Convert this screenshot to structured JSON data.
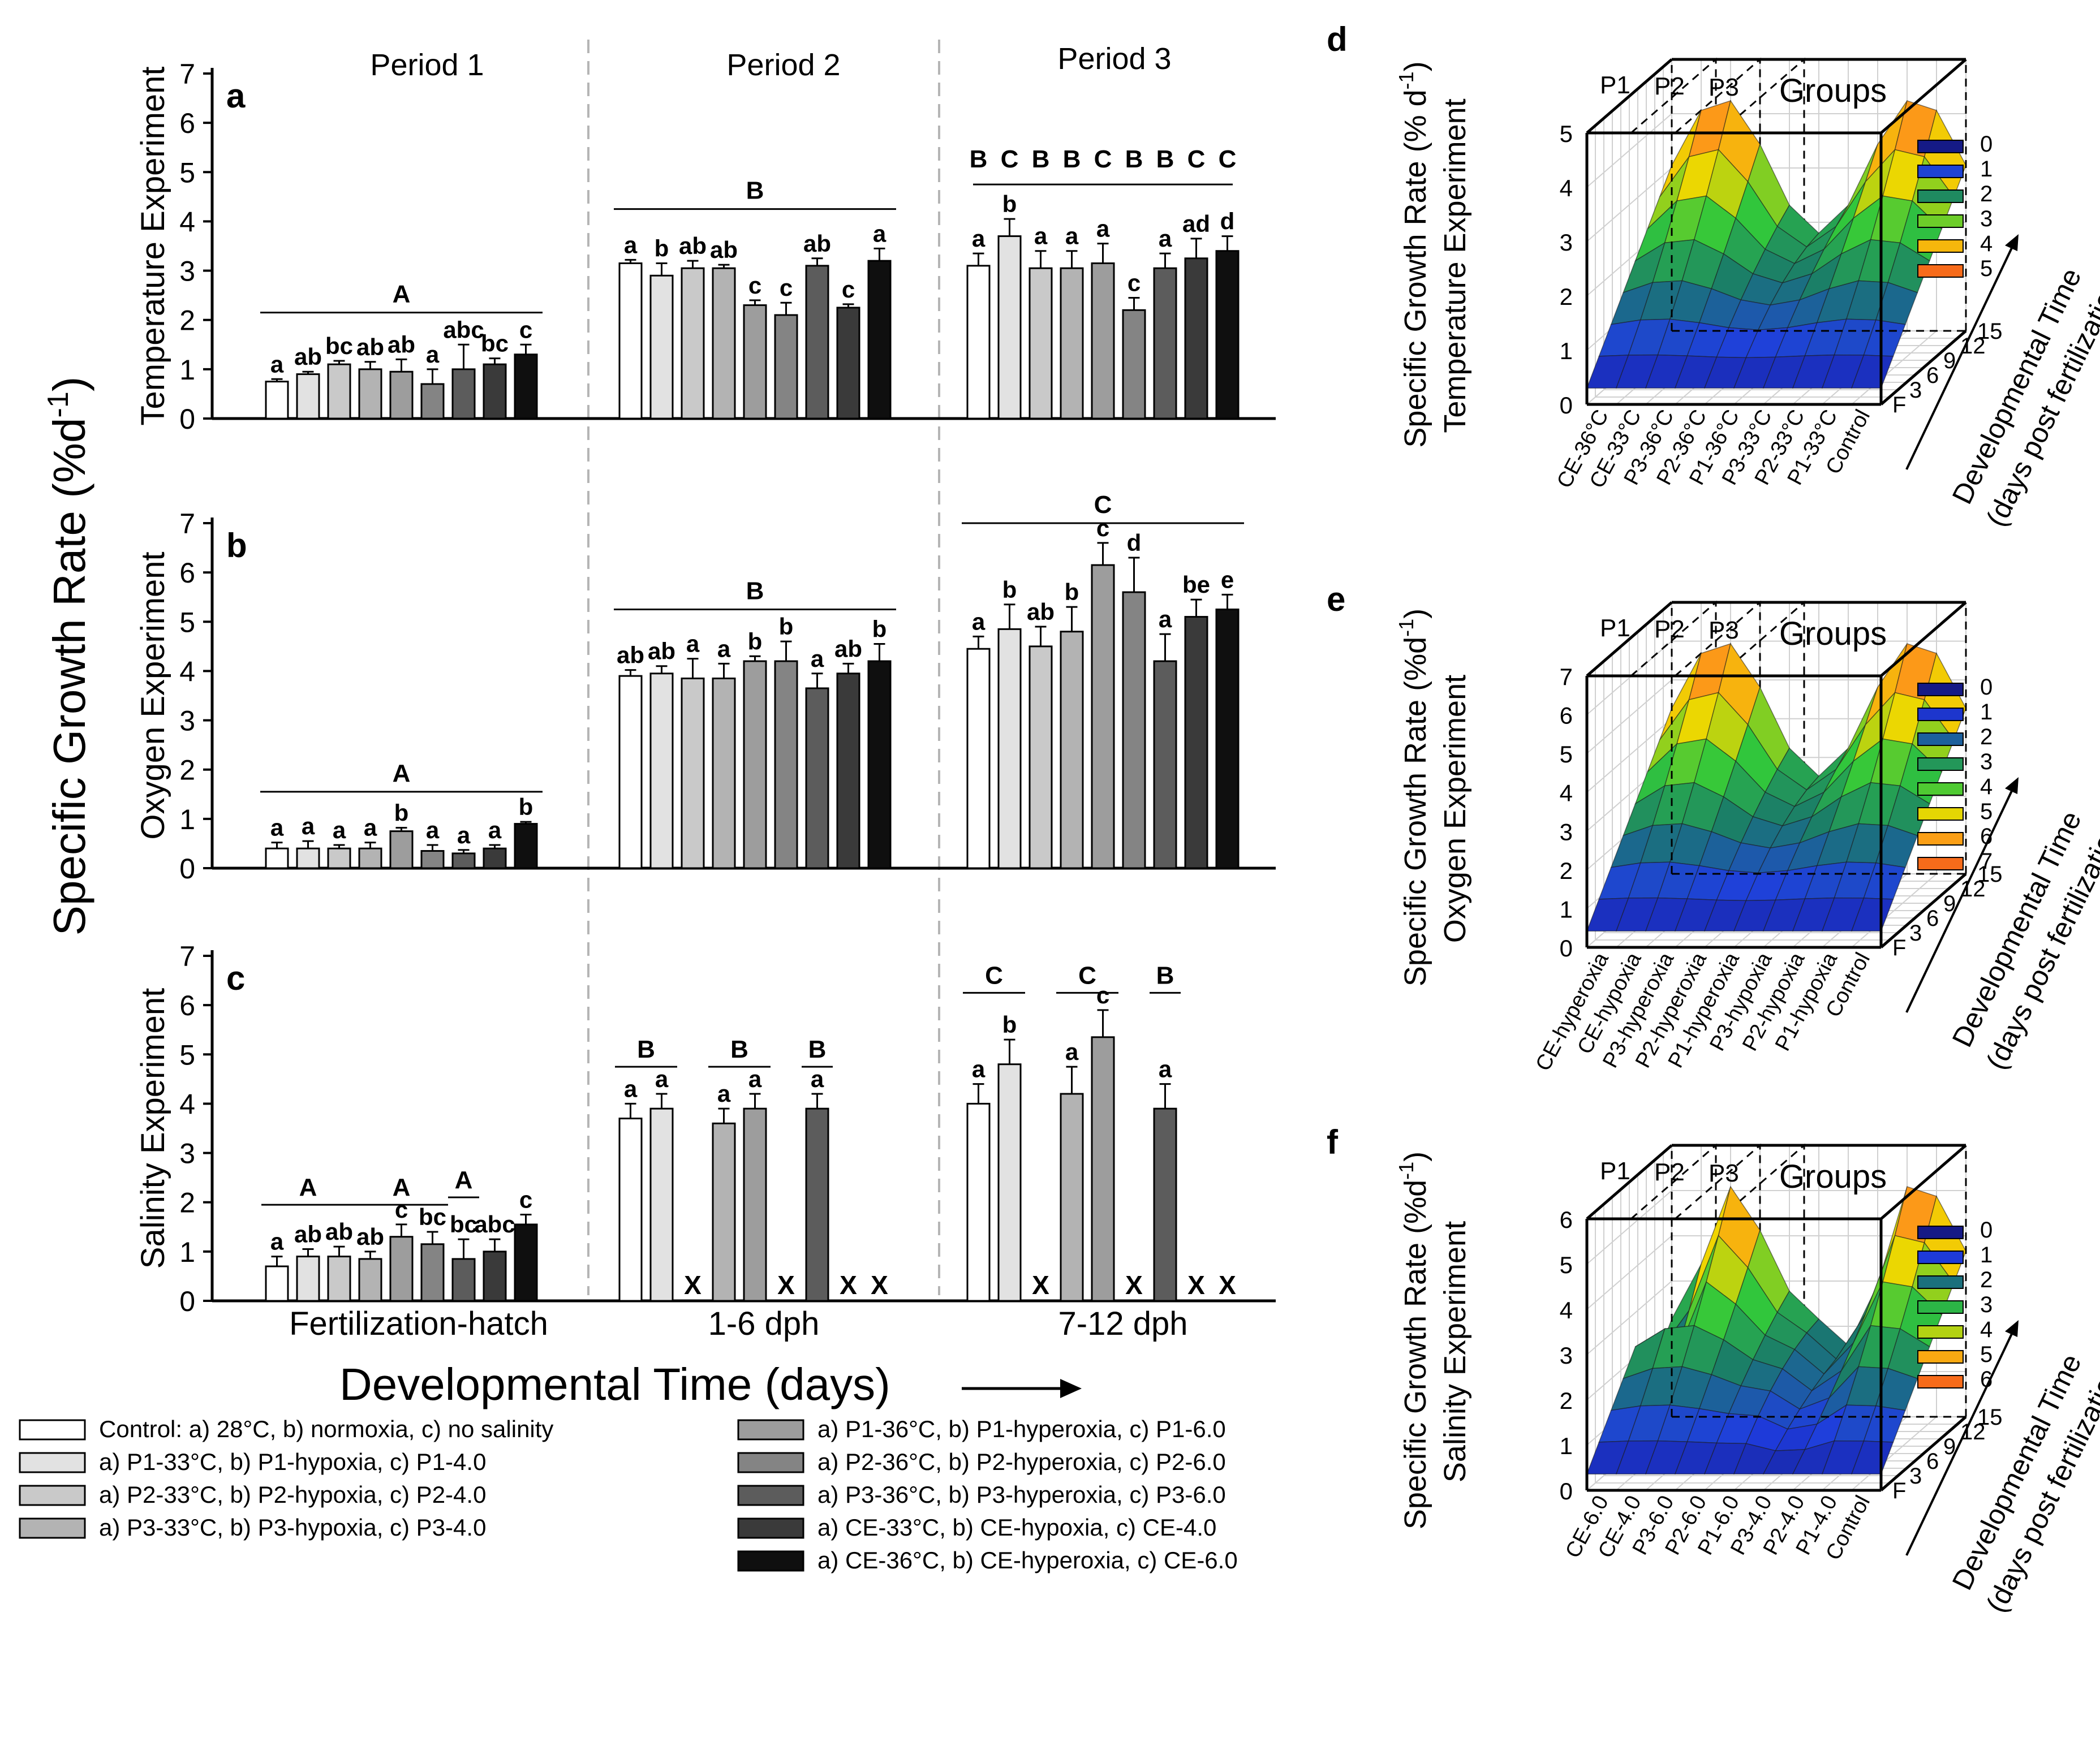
{
  "figure": {
    "y_title": "Specific Growth Rate (%d",
    "y_title_sup": "-1",
    "y_title_close": ")",
    "x_title": "Developmental Time (days)",
    "periods": [
      "Period 1",
      "Period 2",
      "Period 3"
    ],
    "x_categories": [
      "Fertilization-hatch",
      "1-6 dph",
      "7-12 dph"
    ]
  },
  "colors": {
    "bars": [
      "#ffffff",
      "#e2e2e2",
      "#c9c9c9",
      "#b3b3b3",
      "#9d9d9d",
      "#848484",
      "#5c5c5c",
      "#3a3a3a",
      "#0f0f0f"
    ],
    "surface_scale": [
      "#151a86",
      "#1f3de0",
      "#1a7a6a",
      "#32c83b",
      "#f0d700",
      "#ff8a1e",
      "#f04e17",
      "#e4260d"
    ]
  },
  "legend": {
    "items": [
      "Control: a) 28°C, b) normoxia, c) no salinity",
      "a) P1-33°C, b) P1-hypoxia, c) P1-4.0",
      "a) P2-33°C, b) P2-hypoxia, c) P2-4.0",
      "a) P3-33°C, b) P3-hypoxia, c) P3-4.0",
      "a) P1-36°C, b) P1-hyperoxia, c) P1-6.0",
      "a) P2-36°C, b) P2-hyperoxia, c) P2-6.0",
      "a) P3-36°C, b) P3-hyperoxia, c) P3-6.0",
      "a) CE-33°C, b) CE-hypoxia, c) CE-4.0",
      "a) CE-36°C, b) CE-hyperoxia, c) CE-6.0"
    ]
  },
  "chart_data": [
    {
      "type": "bar",
      "panel": "a",
      "title": "Temperature Experiment",
      "ylabel": "Temperature Experiment",
      "ylim": [
        0,
        7
      ],
      "yticks": [
        "0",
        "1",
        "2",
        "3",
        "4",
        "5",
        "6",
        "7"
      ],
      "categories": [
        "Fertilization-hatch",
        "1-6 dph",
        "7-12 dph"
      ],
      "series_names": [
        "Control",
        "P1-33°C",
        "P2-33°C",
        "P3-33°C",
        "P1-36°C",
        "P2-36°C",
        "P3-36°C",
        "CE-33°C",
        "CE-36°C"
      ],
      "groups": [
        {
          "values": [
            0.75,
            0.9,
            1.1,
            1.0,
            0.95,
            0.7,
            1.0,
            1.1,
            1.3
          ],
          "errors": [
            0.05,
            0.05,
            0.07,
            0.15,
            0.25,
            0.3,
            0.5,
            0.12,
            0.2
          ],
          "letters": [
            "a",
            "ab",
            "bc",
            "ab",
            "ab",
            "a",
            "abc",
            "bc",
            "c"
          ],
          "group_letter": "A",
          "group_line_y": 2.15
        },
        {
          "values": [
            3.15,
            2.9,
            3.05,
            3.05,
            2.3,
            2.1,
            3.1,
            2.25,
            3.2
          ],
          "errors": [
            0.07,
            0.25,
            0.15,
            0.07,
            0.1,
            0.25,
            0.15,
            0.07,
            0.25
          ],
          "letters": [
            "a",
            "b",
            "ab",
            "ab",
            "c",
            "c",
            "ab",
            "c",
            "a"
          ],
          "group_letter": "B",
          "group_line_y": 4.25
        },
        {
          "values": [
            3.1,
            3.7,
            3.05,
            3.05,
            3.15,
            2.2,
            3.05,
            3.25,
            3.4
          ],
          "errors": [
            0.25,
            0.35,
            0.35,
            0.35,
            0.4,
            0.25,
            0.3,
            0.4,
            0.3
          ],
          "letters": [
            "a",
            "b",
            "a",
            "a",
            "a",
            "c",
            "a",
            "ad",
            "d"
          ],
          "group_letters_each": [
            "B",
            "C",
            "B",
            "B",
            "C",
            "B",
            "B",
            "C",
            "C"
          ],
          "group_line_y": 4.75
        }
      ]
    },
    {
      "type": "bar",
      "panel": "b",
      "title": "Oxygen Experiment",
      "ylabel": "Oxygen Experiment",
      "ylim": [
        0,
        7
      ],
      "yticks": [
        "0",
        "1",
        "2",
        "3",
        "4",
        "5",
        "6",
        "7"
      ],
      "categories": [
        "Fertilization-hatch",
        "1-6 dph",
        "7-12 dph"
      ],
      "series_names": [
        "Control",
        "P1-hypoxia",
        "P2-hypoxia",
        "P3-hypoxia",
        "P1-hyperoxia",
        "P2-hyperoxia",
        "P3-hyperoxia",
        "CE-hypoxia",
        "CE-hyperoxia"
      ],
      "groups": [
        {
          "values": [
            0.4,
            0.4,
            0.4,
            0.4,
            0.75,
            0.35,
            0.3,
            0.4,
            0.9
          ],
          "errors": [
            0.12,
            0.15,
            0.07,
            0.12,
            0.07,
            0.12,
            0.07,
            0.07,
            0.04
          ],
          "letters": [
            "a",
            "a",
            "a",
            "a",
            "b",
            "a",
            "a",
            "a",
            "b"
          ],
          "group_letter": "A",
          "group_line_y": 1.55
        },
        {
          "values": [
            3.9,
            3.95,
            3.85,
            3.85,
            4.2,
            4.2,
            3.65,
            3.95,
            4.2
          ],
          "errors": [
            0.12,
            0.15,
            0.4,
            0.3,
            0.1,
            0.4,
            0.3,
            0.2,
            0.35
          ],
          "letters": [
            "ab",
            "ab",
            "a",
            "a",
            "b",
            "b",
            "a",
            "ab",
            "b"
          ],
          "group_letter": "B",
          "group_line_y": 5.25
        },
        {
          "values": [
            4.45,
            4.85,
            4.5,
            4.8,
            6.15,
            5.6,
            4.2,
            5.1,
            5.25
          ],
          "errors": [
            0.25,
            0.5,
            0.4,
            0.5,
            0.45,
            0.7,
            0.55,
            0.35,
            0.3
          ],
          "letters": [
            "a",
            "b",
            "ab",
            "b",
            "c",
            "d",
            "a",
            "be",
            "e"
          ],
          "group_letter": "C",
          "group_line_y": 7.0
        }
      ]
    },
    {
      "type": "bar",
      "panel": "c",
      "title": "Salinity Experiment",
      "ylabel": "Salinity Experiment",
      "ylim": [
        0,
        7
      ],
      "yticks": [
        "0",
        "1",
        "2",
        "3",
        "4",
        "5",
        "6",
        "7"
      ],
      "categories": [
        "Fertilization-hatch",
        "1-6 dph",
        "7-12 dph"
      ],
      "series_names": [
        "Control",
        "P1-4.0",
        "P2-4.0",
        "P3-4.0",
        "P1-6.0",
        "P2-6.0",
        "P3-6.0",
        "CE-4.0",
        "CE-6.0"
      ],
      "groups": [
        {
          "values": [
            0.7,
            0.9,
            0.9,
            0.85,
            1.3,
            1.15,
            0.85,
            1.0,
            1.55
          ],
          "errors": [
            0.2,
            0.15,
            0.2,
            0.15,
            0.25,
            0.25,
            0.4,
            0.25,
            0.2
          ],
          "letters": [
            "a",
            "ab",
            "ab",
            "ab",
            "c",
            "bc",
            "bc",
            "abc",
            "c"
          ],
          "sig_brackets": [
            {
              "letter": "A",
              "from": 0,
              "to": 2,
              "y": 1.95
            },
            {
              "letter": "A",
              "from": 3,
              "to": 5,
              "y": 1.95
            },
            {
              "letter": "A",
              "from": 6,
              "to": 6,
              "y": 2.1
            }
          ]
        },
        {
          "values": [
            3.7,
            3.9,
            null,
            3.6,
            3.9,
            null,
            3.9,
            null,
            null
          ],
          "errors": [
            0.3,
            0.3,
            0,
            0.3,
            0.3,
            0,
            0.3,
            0,
            0
          ],
          "letters": [
            "a",
            "a",
            "X",
            "a",
            "a",
            "X",
            "a",
            "X",
            "X"
          ],
          "sig_brackets": [
            {
              "letter": "B",
              "from": 0,
              "to": 1,
              "y": 4.75
            },
            {
              "letter": "B",
              "from": 3,
              "to": 4,
              "y": 4.75
            },
            {
              "letter": "B",
              "from": 6,
              "to": 6,
              "y": 4.75
            }
          ]
        },
        {
          "values": [
            4.0,
            4.8,
            null,
            4.2,
            5.35,
            null,
            3.9,
            null,
            null
          ],
          "errors": [
            0.4,
            0.5,
            0,
            0.55,
            0.55,
            0,
            0.5,
            0,
            0
          ],
          "letters": [
            "a",
            "b",
            "X",
            "a",
            "c",
            "X",
            "a",
            "X",
            "X"
          ],
          "sig_brackets": [
            {
              "letter": "C",
              "from": 0,
              "to": 1,
              "y": 6.25
            },
            {
              "letter": "C",
              "from": 3,
              "to": 4,
              "y": 6.25
            },
            {
              "letter": "B",
              "from": 6,
              "to": 6,
              "y": 6.25
            }
          ]
        }
      ]
    },
    {
      "type": "surface3d",
      "panel": "d",
      "title": "Groups",
      "ylabel_lines": [
        "Specific Growth Rate (% d",
        "-1",
        ")",
        "Temperature Experiment"
      ],
      "zticks": [
        "0",
        "1",
        "2",
        "3",
        "4",
        "5"
      ],
      "period_labels": [
        "P1",
        "P2",
        "P3"
      ],
      "group_labels": [
        "CE-36°C",
        "CE-33°C",
        "P3-36°C",
        "P2-36°C",
        "P1-36°C",
        "P3-33°C",
        "P2-33°C",
        "P1-33°C",
        "Control"
      ],
      "time_ticks": [
        "F",
        "3",
        "6",
        "9",
        "12",
        "15"
      ],
      "time_label": [
        "Developmental Time",
        "(days post fertilization)"
      ],
      "colorbar": [
        "0",
        "1",
        "2",
        "3",
        "4",
        "5"
      ]
    },
    {
      "type": "surface3d",
      "panel": "e",
      "title": "Groups",
      "ylabel_lines": [
        "Specific Growth Rate (%d",
        "-1",
        ")",
        "Oxygen Experiment"
      ],
      "zticks": [
        "0",
        "1",
        "2",
        "3",
        "4",
        "5",
        "6",
        "7"
      ],
      "period_labels": [
        "P1",
        "P2",
        "P3"
      ],
      "group_labels": [
        "CE-hyperoxia",
        "CE-hypoxia",
        "P3-hyperoxia",
        "P2-hyperoxia",
        "P1-hyperoxia",
        "P3-hypoxia",
        "P2-hypoxia",
        "P1-hypoxia",
        "Control"
      ],
      "time_ticks": [
        "F",
        "3",
        "6",
        "9",
        "12",
        "15"
      ],
      "time_label": [
        "Developmental Time",
        "(days post fertilization)"
      ],
      "colorbar": [
        "0",
        "1",
        "2",
        "3",
        "4",
        "5",
        "6",
        "7"
      ]
    },
    {
      "type": "surface3d",
      "panel": "f",
      "title": "Groups",
      "ylabel_lines": [
        "Specific Growth Rate (%d",
        "-1",
        ")",
        "Salinity Experiment"
      ],
      "zticks": [
        "0",
        "1",
        "2",
        "3",
        "4",
        "5",
        "6"
      ],
      "period_labels": [
        "P1",
        "P2",
        "P3"
      ],
      "group_labels": [
        "CE-6.0",
        "CE-4.0",
        "P3-6.0",
        "P2-6.0",
        "P1-6.0",
        "P3-4.0",
        "P2-4.0",
        "P1-4.0",
        "Control"
      ],
      "time_ticks": [
        "F",
        "3",
        "6",
        "9",
        "12",
        "15"
      ],
      "time_label": [
        "Developmental Time",
        "(days post fertilization)"
      ],
      "colorbar": [
        "0",
        "1",
        "2",
        "3",
        "4",
        "5",
        "6"
      ]
    }
  ]
}
